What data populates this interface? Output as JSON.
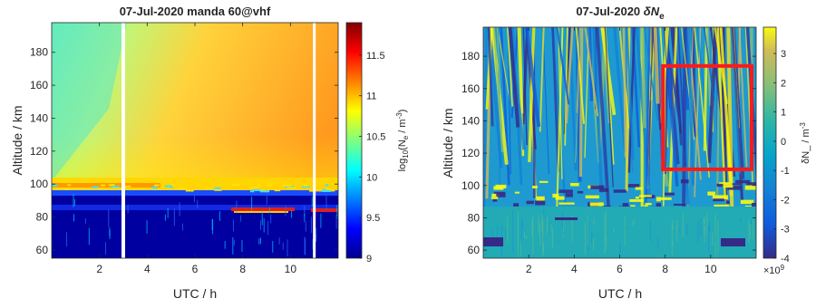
{
  "chart_data": [
    {
      "type": "heatmap",
      "title": "07-Jul-2020 manda 60@vhf",
      "xlabel": "UTC / h",
      "ylabel": "Altitude / km",
      "xlim": [
        0,
        12
      ],
      "ylim": [
        55,
        198
      ],
      "xticks": [
        2,
        4,
        6,
        8,
        10
      ],
      "yticks": [
        60,
        80,
        100,
        120,
        140,
        160,
        180
      ],
      "data_gaps_utc_h": [
        3.0,
        11.0
      ],
      "colorbar": {
        "label": "log10(Ne / m-3)",
        "label_base": "log",
        "label_sub": "10",
        "label_mid": "(N",
        "label_sub2": "e",
        "label_mid2": " / m",
        "label_sup": "-3",
        "label_end": ")",
        "range": [
          9,
          11.9
        ],
        "ticks": [
          9,
          9.5,
          10,
          10.5,
          11,
          11.5
        ],
        "colormap": "jet"
      }
    },
    {
      "type": "heatmap",
      "title": "07-Jul-2020 δNe",
      "title_main": "07-Jul-2020 ",
      "title_symbol": "δN",
      "title_sub": "e",
      "xlabel": "UTC / h",
      "ylabel": "Altitude / km",
      "xlim": [
        0,
        12
      ],
      "ylim": [
        55,
        198
      ],
      "xticks": [
        2,
        4,
        6,
        8,
        10
      ],
      "yticks": [
        60,
        80,
        100,
        120,
        140,
        160,
        180
      ],
      "highlight_box": {
        "x": [
          7.9,
          11.8
        ],
        "y": [
          110,
          174
        ],
        "color": "#ff1a1a"
      },
      "colorbar": {
        "label": "δN_ / m-3",
        "label_main": "δN_ / m",
        "label_sup": "-3",
        "range": [
          -4,
          3.9
        ],
        "ticks": [
          -4,
          -3,
          -2,
          -1,
          0,
          1,
          2,
          3
        ],
        "exponent_base": "×10",
        "exponent_sup": "9",
        "colormap": "parula"
      }
    }
  ]
}
